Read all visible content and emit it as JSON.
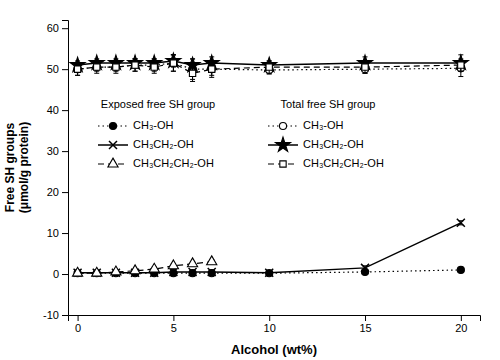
{
  "chart_data": {
    "type": "line",
    "xlabel": "Alcohol (wt%)",
    "ylabel": "Free SH groups\n(μmol/g protein)",
    "x": [
      0,
      1,
      2,
      3,
      4,
      5,
      6,
      7,
      10,
      15,
      20
    ],
    "color": "black",
    "grid": false,
    "legend": "center",
    "annotations": [
      "Exposed free SH group",
      "Total free SH group"
    ],
    "series": [
      {
        "name": "CH₃-OH",
        "marker": "circle",
        "line_style": "dotted",
        "values": [
          0.2,
          0.2,
          0.2,
          0.2,
          0.2,
          0.2,
          0.2,
          0.2,
          0.2,
          0.5,
          1.0
        ],
        "errors": [
          0.3,
          0.3,
          0.3,
          0.3,
          0.3,
          0.3,
          0.3,
          0.3,
          0.3,
          0.3,
          0.3
        ]
      },
      {
        "name": "CH₃CH₂-OH",
        "marker": "x",
        "line_style": "solid",
        "values": [
          0.3,
          0.3,
          0.3,
          0.3,
          0.3,
          0.5,
          0.5,
          0.5,
          0.3,
          1.5,
          12.5
        ],
        "errors": [
          0.3,
          0.3,
          0.3,
          0.3,
          0.3,
          0.5,
          0.5,
          0.5,
          0.3,
          0.5,
          0.5
        ]
      },
      {
        "name": "CH₃CH₂CH₂-OH",
        "marker": "triangle-open",
        "line_style": "dashed",
        "values": [
          0.2,
          0.2,
          0.5,
          0.8,
          1.2,
          2.0,
          2.5,
          3.0,
          null,
          null,
          null
        ],
        "errors": [
          0.2,
          0.2,
          0.3,
          0.4,
          0.5,
          0.5,
          0.5,
          0.5,
          null,
          null,
          null
        ]
      },
      {
        "name": "CH₃-OH",
        "marker": "circle-open",
        "line_style": "dotted",
        "values": [
          50.0,
          50.5,
          50.5,
          51.0,
          51.0,
          51.5,
          50.0,
          50.0,
          49.8,
          50.0,
          50.2
        ],
        "errors": [
          1.5,
          1.0,
          1.0,
          1.5,
          1.5,
          2.0,
          2.5,
          1.5,
          1.0,
          1.0,
          2.0
        ]
      },
      {
        "name": "CH₃CH₂-OH",
        "marker": "star",
        "line_style": "solid",
        "values": [
          51.0,
          51.5,
          51.5,
          51.5,
          51.5,
          52.0,
          51.0,
          51.5,
          51.0,
          51.5,
          51.5
        ],
        "errors": [
          1.0,
          1.0,
          1.0,
          1.0,
          1.0,
          1.5,
          1.5,
          1.5,
          1.0,
          1.5,
          2.0
        ]
      },
      {
        "name": "CH₃CH₂CH₂-OH",
        "marker": "square-open",
        "line_style": "dashed",
        "values": [
          50.0,
          50.5,
          50.5,
          51.0,
          50.5,
          51.5,
          49.0,
          50.0,
          50.5,
          50.5,
          51.0
        ],
        "errors": [
          1.5,
          1.5,
          1.5,
          1.5,
          1.5,
          2.0,
          2.0,
          2.0,
          1.5,
          1.5,
          1.5
        ]
      }
    ],
    "xlim": [
      -0.5,
      21
    ],
    "ylim": [
      -10,
      62
    ],
    "xticks": [
      0,
      5,
      10,
      15,
      20
    ],
    "yticks": [
      -10,
      0,
      10,
      20,
      30,
      40,
      50,
      60
    ]
  }
}
